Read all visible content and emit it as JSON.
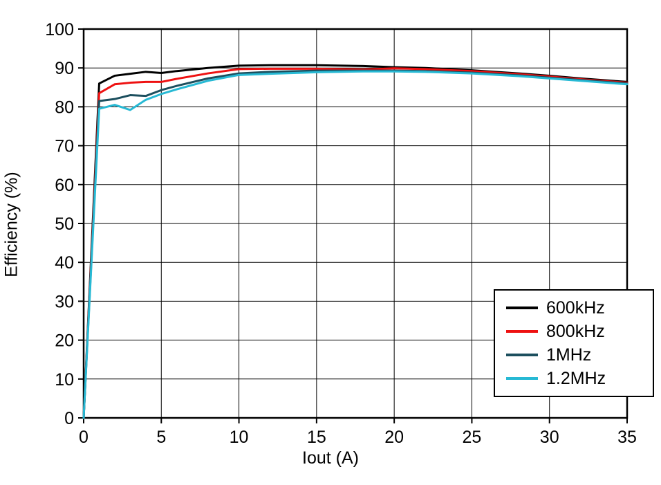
{
  "chart_data": {
    "type": "line",
    "title": "",
    "xlabel": "Iout (A)",
    "ylabel": "Efficiency (%)",
    "xlim": [
      0,
      35
    ],
    "ylim": [
      0,
      100
    ],
    "xticks": [
      0,
      5,
      10,
      15,
      20,
      25,
      30,
      35
    ],
    "yticks": [
      0,
      10,
      20,
      30,
      40,
      50,
      60,
      70,
      80,
      90,
      100
    ],
    "grid": true,
    "legend_position": "bottom-right",
    "series": [
      {
        "name": "600kHz",
        "color": "#000000",
        "x": [
          0,
          1,
          2,
          3,
          4,
          5,
          6,
          8,
          10,
          12,
          15,
          18,
          20,
          22,
          25,
          28,
          30,
          32,
          35
        ],
        "y": [
          0,
          86,
          88,
          88.5,
          89,
          88.7,
          89.2,
          90,
          90.6,
          90.7,
          90.7,
          90.5,
          90.2,
          90,
          89.4,
          88.6,
          88,
          87.3,
          86.4
        ]
      },
      {
        "name": "800kHz",
        "color": "#ee1111",
        "x": [
          0,
          1,
          2,
          3,
          4,
          5,
          6,
          8,
          10,
          12,
          15,
          18,
          20,
          22,
          25,
          28,
          30,
          32,
          35
        ],
        "y": [
          0,
          83.5,
          85.8,
          86.2,
          86.4,
          86.4,
          87.2,
          88.6,
          89.7,
          89.8,
          89.8,
          89.6,
          89.9,
          89.7,
          89.2,
          88.4,
          87.8,
          87.1,
          86.2
        ]
      },
      {
        "name": "1MHz",
        "color": "#1c4f5e",
        "x": [
          0,
          1,
          2,
          3,
          4,
          5,
          6,
          8,
          10,
          12,
          15,
          18,
          20,
          22,
          25,
          28,
          30,
          32,
          35
        ],
        "y": [
          0,
          81.5,
          82,
          83,
          82.8,
          84.3,
          85.4,
          87.3,
          88.6,
          89,
          89.3,
          89.3,
          89.3,
          89.2,
          88.8,
          88.1,
          87.5,
          86.9,
          86
        ]
      },
      {
        "name": "1.2MHz",
        "color": "#27b9d4",
        "x": [
          0,
          1,
          2,
          3,
          4,
          5,
          6,
          8,
          10,
          12,
          15,
          18,
          20,
          22,
          25,
          28,
          30,
          32,
          35
        ],
        "y": [
          0,
          79.5,
          80.5,
          79.2,
          81.8,
          83.3,
          84.5,
          86.7,
          88.2,
          88.5,
          88.9,
          89.1,
          89.1,
          89,
          88.6,
          87.9,
          87.3,
          86.7,
          85.8
        ]
      }
    ]
  }
}
